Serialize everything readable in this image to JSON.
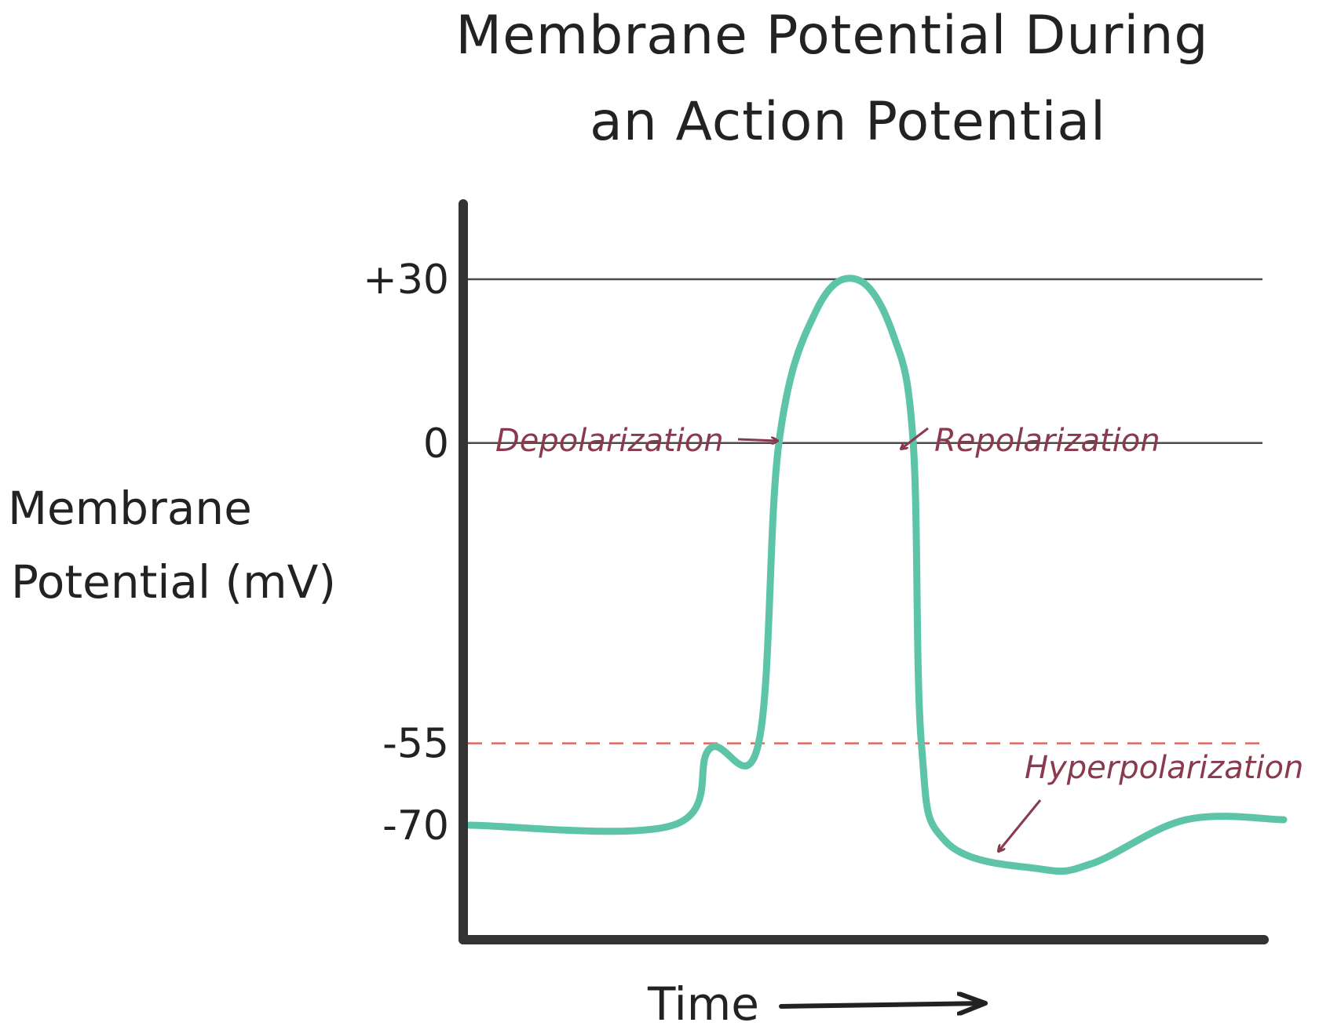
{
  "chart_data": {
    "type": "line",
    "title_lines": [
      "Membrane Potential During",
      "an Action Potential"
    ],
    "ylabel_lines": [
      "Membrane",
      "Potential (mV)"
    ],
    "xlabel": "Time",
    "y_ticks": [
      {
        "value": 30,
        "label": "+30"
      },
      {
        "value": 0,
        "label": "0"
      },
      {
        "value": -55,
        "label": "-55"
      },
      {
        "value": -70,
        "label": "-70"
      }
    ],
    "ylim": [
      -85,
      38
    ],
    "xlim": [
      0,
      100
    ],
    "reference_lines": [
      {
        "y": 30,
        "style": "solid"
      },
      {
        "y": 0,
        "style": "solid"
      },
      {
        "y": -55,
        "style": "dashed",
        "color": "#e0675f"
      }
    ],
    "series": [
      {
        "color": "#5dc4a8",
        "points": [
          {
            "x": 0,
            "y": -70
          },
          {
            "x": 25,
            "y": -70
          },
          {
            "x": 29.5,
            "y": -56
          },
          {
            "x": 35.5,
            "y": -55
          },
          {
            "x": 38,
            "y": 0
          },
          {
            "x": 42.5,
            "y": 24
          },
          {
            "x": 47.5,
            "y": 30
          },
          {
            "x": 52,
            "y": 20
          },
          {
            "x": 54.5,
            "y": 0
          },
          {
            "x": 55.5,
            "y": -55
          },
          {
            "x": 58.5,
            "y": -73
          },
          {
            "x": 70,
            "y": -78
          },
          {
            "x": 76.5,
            "y": -77
          },
          {
            "x": 88,
            "y": -69
          },
          {
            "x": 100,
            "y": -69
          }
        ]
      }
    ],
    "annotations": [
      {
        "text": "Depolarization",
        "color": "#8a3a4e"
      },
      {
        "text": "Repolarization",
        "color": "#8a3a4e"
      },
      {
        "text": "Hyperpolarization",
        "color": "#8a3a4e"
      }
    ],
    "colors": {
      "axis": "#333333",
      "gridline": "#4a4a4a",
      "threshold": "#e0675f",
      "trace": "#5dc4a8",
      "annotation": "#8a3a4e"
    }
  }
}
